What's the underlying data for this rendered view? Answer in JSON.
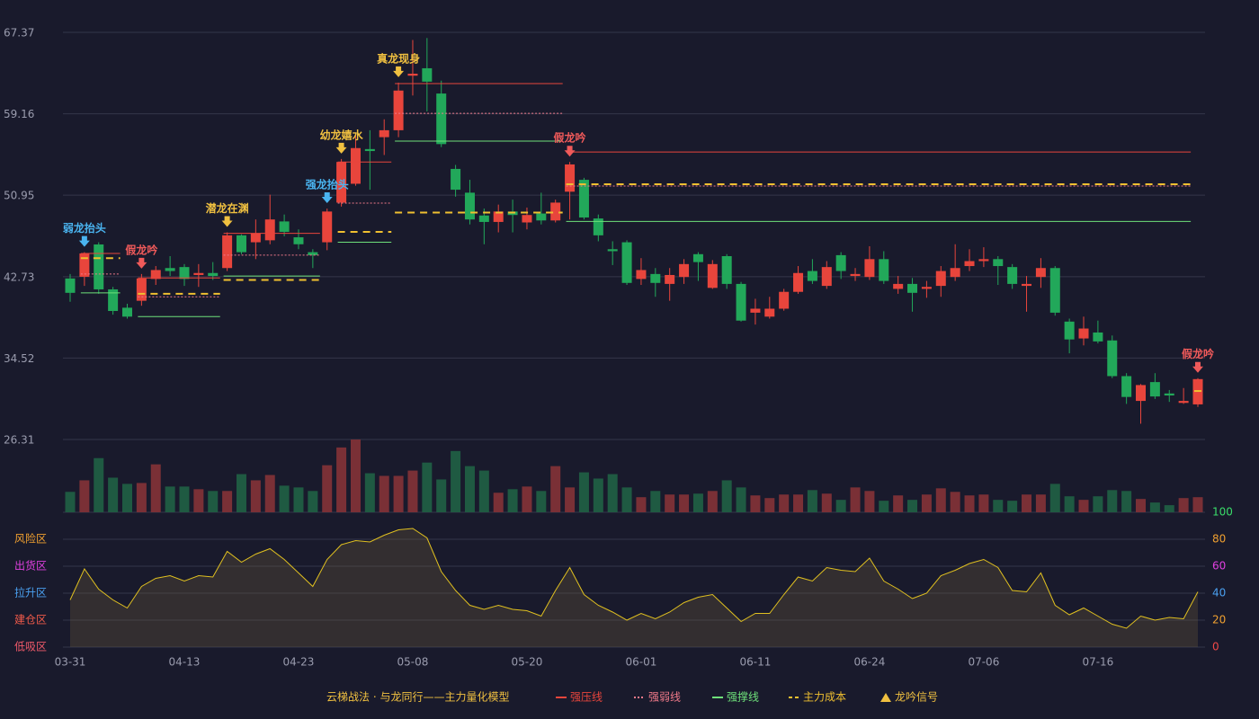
{
  "chart_data": {
    "type": "candlestick",
    "categories": [
      "03-31",
      null,
      null,
      null,
      null,
      null,
      null,
      null,
      "04-13",
      null,
      null,
      null,
      null,
      null,
      null,
      null,
      "04-23",
      null,
      null,
      null,
      null,
      null,
      null,
      null,
      "05-08",
      null,
      null,
      null,
      null,
      null,
      null,
      null,
      "05-20",
      null,
      null,
      null,
      null,
      null,
      null,
      null,
      "06-01",
      null,
      null,
      null,
      null,
      null,
      null,
      null,
      "06-11",
      null,
      null,
      null,
      null,
      null,
      null,
      null,
      "06-24",
      null,
      null,
      null,
      null,
      null,
      null,
      null,
      "07-06",
      null,
      null,
      null,
      null,
      null,
      null,
      null,
      "07-16",
      null,
      null,
      null,
      null,
      null,
      null,
      null
    ],
    "open": [
      42.55,
      42.72,
      45.98,
      41.45,
      39.6,
      40.3,
      42.5,
      43.6,
      43.7,
      42.9,
      43.1,
      43.6,
      46.9,
      46.2,
      46.4,
      48.3,
      46.7,
      45.2,
      46.2,
      50.2,
      52.1,
      55.6,
      56.8,
      57.5,
      63.0,
      63.75,
      61.2,
      53.6,
      51.2,
      48.9,
      48.25,
      49.3,
      48.2,
      49.1,
      48.4,
      51.3,
      52.5,
      48.6,
      45.5,
      46.2,
      42.5,
      43.0,
      42.0,
      42.7,
      45.0,
      41.6,
      44.8,
      42.0,
      39.1,
      38.7,
      39.5,
      41.2,
      43.3,
      41.8,
      44.9,
      42.8,
      42.7,
      44.5,
      41.5,
      42.0,
      41.5,
      41.8,
      42.7,
      43.8,
      44.3,
      44.5,
      43.7,
      41.8,
      42.7,
      43.6,
      38.2,
      36.5,
      37.1,
      36.3,
      32.7,
      30.2,
      32.1,
      30.95,
      30.0,
      29.85
    ],
    "close": [
      41.1,
      45.07,
      41.45,
      39.27,
      38.7,
      42.55,
      43.4,
      43.3,
      42.5,
      43.1,
      42.8,
      46.9,
      45.2,
      47.1,
      48.5,
      47.25,
      46.0,
      44.9,
      49.3,
      54.3,
      55.7,
      55.4,
      57.5,
      61.5,
      63.2,
      62.4,
      56.1,
      51.5,
      48.5,
      48.25,
      49.3,
      48.95,
      48.95,
      48.4,
      50.2,
      54.05,
      48.7,
      46.9,
      45.3,
      42.1,
      43.4,
      42.1,
      42.9,
      44.0,
      44.2,
      44.0,
      42.0,
      38.3,
      39.5,
      39.5,
      41.2,
      43.1,
      42.3,
      43.7,
      43.3,
      43.0,
      44.5,
      42.3,
      42.0,
      41.1,
      41.7,
      43.3,
      43.6,
      44.3,
      44.5,
      43.8,
      42.0,
      42.0,
      43.6,
      39.1,
      36.4,
      37.5,
      36.2,
      32.7,
      30.6,
      31.8,
      30.65,
      30.75,
      30.2,
      32.4
    ],
    "high": [
      43.0,
      45.2,
      46.2,
      41.7,
      40.0,
      43.0,
      43.8,
      44.8,
      44.0,
      44.0,
      44.2,
      47.2,
      47.0,
      48.5,
      51.0,
      49.0,
      47.5,
      45.5,
      49.6,
      54.6,
      57.0,
      57.5,
      58.6,
      62.3,
      66.6,
      66.8,
      62.5,
      54.0,
      52.5,
      49.6,
      50.0,
      50.5,
      49.7,
      51.2,
      50.5,
      54.3,
      52.7,
      49.0,
      46.3,
      46.4,
      44.6,
      43.6,
      43.6,
      44.5,
      45.2,
      44.4,
      45.0,
      42.2,
      40.5,
      40.7,
      41.5,
      43.8,
      44.5,
      44.3,
      45.2,
      43.6,
      45.8,
      45.3,
      42.8,
      42.6,
      42.3,
      43.8,
      46.0,
      45.5,
      45.7,
      44.8,
      44.0,
      42.8,
      44.6,
      43.8,
      38.5,
      38.7,
      38.3,
      36.8,
      33.0,
      31.9,
      33.0,
      31.3,
      31.5,
      32.5
    ],
    "low": [
      40.2,
      41.8,
      41.0,
      38.9,
      38.5,
      39.8,
      41.9,
      42.8,
      41.8,
      41.7,
      42.4,
      43.3,
      45.0,
      44.5,
      46.0,
      46.8,
      45.5,
      43.6,
      45.4,
      49.8,
      51.9,
      51.5,
      55.0,
      56.8,
      61.0,
      59.4,
      55.8,
      50.8,
      48.0,
      46.0,
      47.2,
      47.2,
      47.5,
      48.0,
      48.2,
      48.5,
      48.5,
      46.3,
      43.9,
      41.9,
      41.9,
      40.7,
      40.3,
      42.0,
      42.3,
      41.5,
      41.5,
      38.2,
      37.9,
      38.5,
      39.3,
      41.0,
      42.0,
      41.5,
      42.5,
      42.3,
      42.4,
      42.0,
      41.0,
      39.2,
      40.6,
      40.7,
      42.3,
      43.3,
      43.7,
      41.9,
      41.5,
      39.2,
      41.6,
      38.8,
      35.0,
      35.8,
      36.0,
      32.5,
      29.9,
      27.9,
      30.4,
      30.1,
      29.9,
      29.6
    ],
    "up_color": "#e8453c",
    "down_color": "#22a85a",
    "volume": [
      23,
      36,
      61,
      39,
      32,
      33,
      54,
      29,
      29,
      26,
      24,
      24,
      43,
      36,
      42,
      30,
      28,
      24,
      53,
      73,
      82,
      44,
      41,
      41,
      47,
      56,
      37,
      69,
      52,
      47,
      22,
      26,
      29,
      24,
      52,
      28,
      45,
      38,
      43,
      28,
      17,
      24,
      20,
      20,
      21,
      24,
      36,
      28,
      19,
      16,
      20,
      20,
      25,
      21,
      14,
      28,
      24,
      13,
      19,
      14,
      20,
      27,
      23,
      19,
      20,
      14,
      13,
      20,
      20,
      32,
      18,
      14,
      18,
      25,
      24,
      15,
      11,
      8,
      16,
      17
    ],
    "volume_up_color": "#7a3036",
    "volume_down_color": "#1f5a42",
    "ylim": [
      26.31,
      67.37
    ],
    "yticks": [
      26.31,
      34.52,
      42.73,
      50.95,
      59.16,
      67.37
    ],
    "levels": [
      {
        "name": "强压线",
        "color": "#e8453c",
        "style": "solid",
        "segments": [
          {
            "start": 1,
            "end": 3,
            "value": 45.07
          },
          {
            "start": 5,
            "end": 10,
            "value": 42.6
          },
          {
            "start": 11,
            "end": 17,
            "value": 47.1
          },
          {
            "start": 19,
            "end": 22,
            "value": 54.3
          },
          {
            "start": 23,
            "end": 34,
            "value": 62.2
          },
          {
            "start": 35,
            "end": 78,
            "value": 55.3
          }
        ]
      },
      {
        "name": "强弱线",
        "color": "#f07a8a",
        "style": "dotted",
        "segments": [
          {
            "start": 1,
            "end": 3,
            "value": 43.0
          },
          {
            "start": 5,
            "end": 10,
            "value": 40.7
          },
          {
            "start": 11,
            "end": 17,
            "value": 44.9
          },
          {
            "start": 19,
            "end": 22,
            "value": 50.15
          },
          {
            "start": 23,
            "end": 34,
            "value": 59.2
          },
          {
            "start": 35,
            "end": 78,
            "value": 51.87
          }
        ]
      },
      {
        "name": "强撑线",
        "color": "#6ee07a",
        "style": "solid",
        "segments": [
          {
            "start": 1,
            "end": 3,
            "value": 41.1
          },
          {
            "start": 5,
            "end": 10,
            "value": 38.7
          },
          {
            "start": 11,
            "end": 17,
            "value": 42.8
          },
          {
            "start": 19,
            "end": 22,
            "value": 46.2
          },
          {
            "start": 23,
            "end": 34,
            "value": 56.4
          },
          {
            "start": 35,
            "end": 78,
            "value": 48.3
          }
        ]
      },
      {
        "name": "主力成本",
        "color": "#f0c030",
        "style": "dashed",
        "segments": [
          {
            "start": 1,
            "end": 3,
            "value": 44.6
          },
          {
            "start": 5,
            "end": 10,
            "value": 41.0
          },
          {
            "start": 11,
            "end": 17,
            "value": 42.4
          },
          {
            "start": 19,
            "end": 22,
            "value": 47.25
          },
          {
            "start": 23,
            "end": 34,
            "value": 49.2
          },
          {
            "start": 35,
            "end": 78,
            "value": 52.05
          },
          {
            "start": 79,
            "end": 79,
            "value": 31.2
          }
        ]
      }
    ],
    "signals": {
      "name": "龙吟信号",
      "color": "#f0c040",
      "items": [
        {
          "index": 1,
          "label": "弱龙抬头",
          "color": "#4ab4f0"
        },
        {
          "index": 5,
          "label": "假龙吟",
          "color": "#f05a5a"
        },
        {
          "index": 11,
          "label": "潜龙在渊",
          "color": "#f0c040"
        },
        {
          "index": 18,
          "label": "强龙抬头",
          "color": "#4ab4f0"
        },
        {
          "index": 19,
          "label": "幼龙嬉水",
          "color": "#f0c040"
        },
        {
          "index": 23,
          "label": "真龙现身",
          "color": "#f0c040"
        },
        {
          "index": 35,
          "label": "假龙吟",
          "color": "#f05a5a"
        },
        {
          "index": 79,
          "label": "假龙吟",
          "color": "#f05a5a"
        }
      ]
    },
    "indicator": {
      "values": [
        35,
        58,
        43,
        35,
        29,
        45,
        51,
        53,
        49,
        53,
        52,
        71,
        63,
        69,
        73,
        65,
        55,
        45,
        65,
        76,
        79,
        78,
        83,
        87,
        88,
        81,
        56,
        42,
        31,
        28,
        31,
        28,
        27,
        23,
        42,
        59,
        39,
        31,
        26,
        20,
        25,
        21,
        26,
        33,
        37,
        39,
        29,
        19,
        25,
        25,
        39,
        52,
        49,
        59,
        57,
        56,
        66,
        49,
        43,
        36,
        40,
        53,
        57,
        62,
        65,
        59,
        42,
        41,
        55,
        31,
        24,
        29,
        23,
        17,
        14,
        23,
        20,
        22,
        21,
        41
      ],
      "color": "#e0c020",
      "ylim": [
        0,
        100
      ],
      "yticks": [
        0,
        20,
        40,
        60,
        80,
        100
      ],
      "ytick_colors": [
        "#f04848",
        "#f0a030",
        "#4aa0f0",
        "#e040e0",
        "#f0a030",
        "#3adc6a"
      ],
      "zones": [
        {
          "label": "低吸区",
          "color": "#f05a6a"
        },
        {
          "label": "建仓区",
          "color": "#f05a4a"
        },
        {
          "label": "拉升区",
          "color": "#4aa0f0"
        },
        {
          "label": "出货区",
          "color": "#e040e0"
        },
        {
          "label": "风险区",
          "color": "#f0a030"
        }
      ]
    },
    "legend_title": "云梯战法 · 与龙同行——主力量化模型",
    "legend_title_color": "#f0c040"
  }
}
